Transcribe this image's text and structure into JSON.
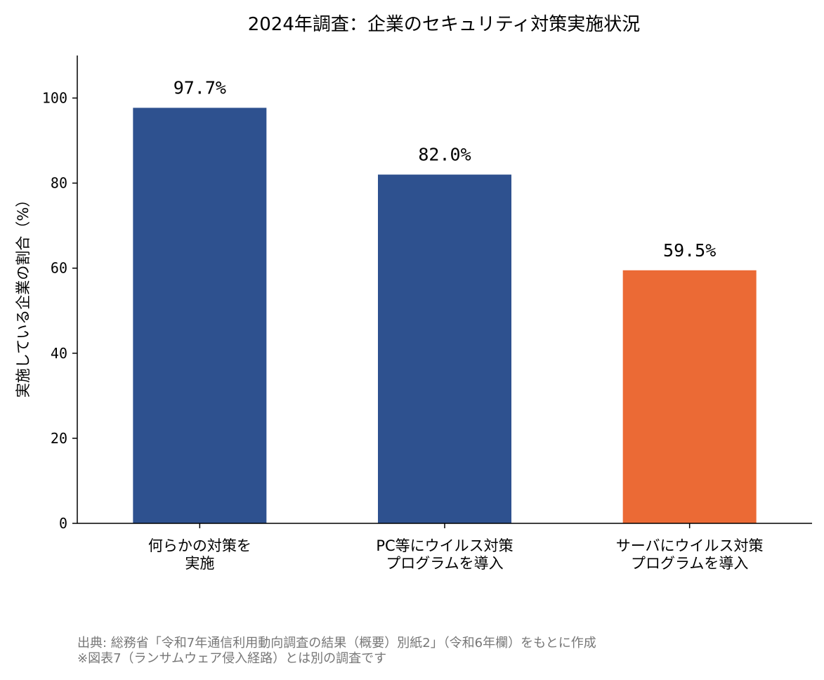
{
  "chart_data": {
    "type": "bar",
    "title": "2024年調査：企業のセキュリティ対策実施状況",
    "ylabel": "実施している企業の割合（%）",
    "xlabel": "",
    "categories": [
      [
        "何らかの対策を",
        "実施"
      ],
      [
        "PC等にウイルス対策",
        "プログラムを導入"
      ],
      [
        "サーバにウイルス対策",
        "プログラムを導入"
      ]
    ],
    "values": [
      97.7,
      82.0,
      59.5
    ],
    "data_labels": [
      "97.7%",
      "82.0%",
      "59.5%"
    ],
    "bar_colors": [
      "#2e518f",
      "#2e518f",
      "#eb6a35"
    ],
    "ylim": [
      0,
      110
    ],
    "yticks": [
      0,
      20,
      40,
      60,
      80,
      100
    ],
    "grid": false,
    "legend": "none"
  },
  "footnotes": {
    "source": "出典: 総務省「令和7年通信利用動向調査の結果（概要）別紙2」（令和6年欄）をもとに作成",
    "note": "※図表7（ランサムウェア侵入経路）とは別の調査です"
  }
}
